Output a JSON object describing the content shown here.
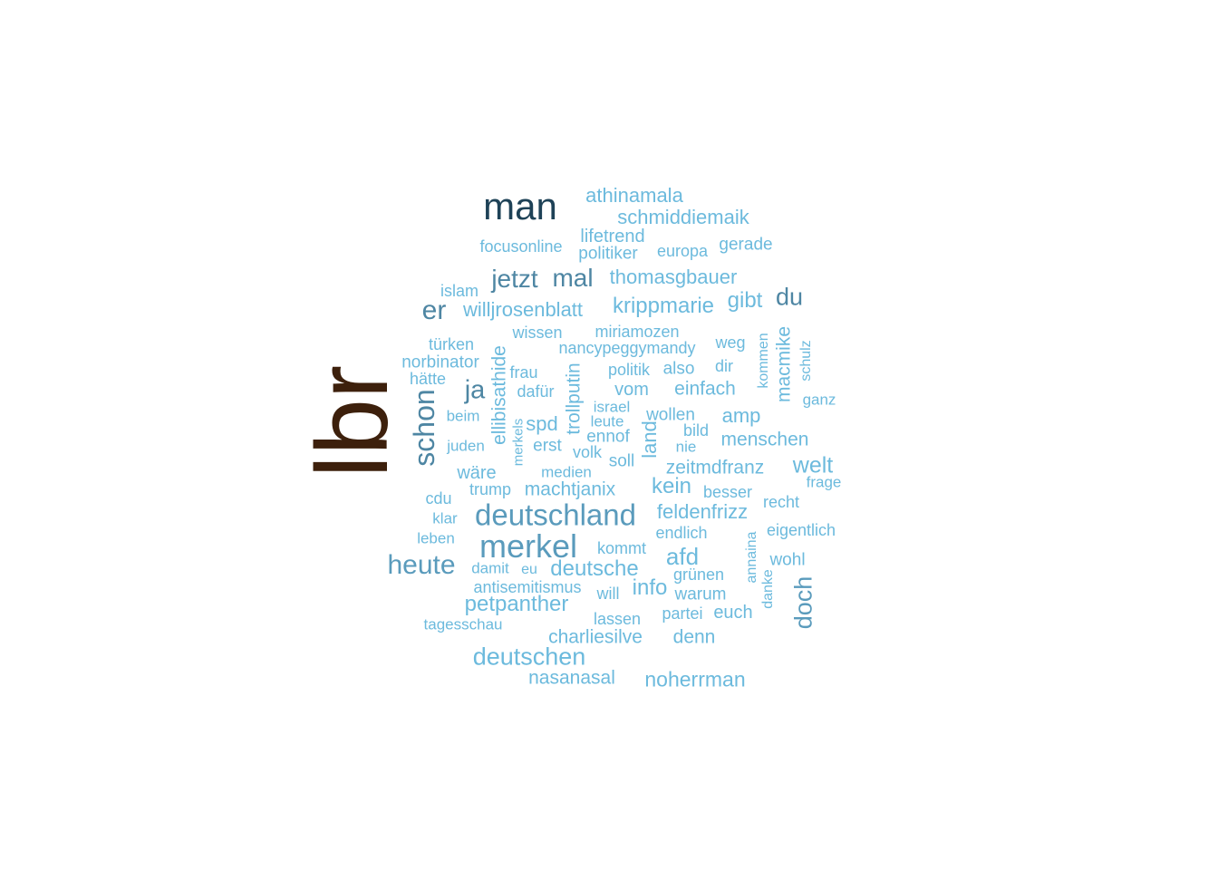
{
  "palette": {
    "top": "#3d200c",
    "second": "#1e4257",
    "tier3": "#4e86a3",
    "tier4": "#5a9bbc",
    "light": "#6cbadd"
  },
  "words": [
    {
      "text": "lbr",
      "color": "top",
      "rot": true
    },
    {
      "text": "man",
      "color": "second"
    },
    {
      "text": "athinamala",
      "color": "light"
    },
    {
      "text": "schmiddiemaik",
      "color": "light"
    },
    {
      "text": "lifetrend",
      "color": "light"
    },
    {
      "text": "focusonline",
      "color": "light"
    },
    {
      "text": "politiker",
      "color": "light"
    },
    {
      "text": "europa",
      "color": "light"
    },
    {
      "text": "gerade",
      "color": "light"
    },
    {
      "text": "jetzt",
      "color": "tier3"
    },
    {
      "text": "mal",
      "color": "tier3"
    },
    {
      "text": "thomasgbauer",
      "color": "light"
    },
    {
      "text": "islam",
      "color": "light"
    },
    {
      "text": "er",
      "color": "tier3"
    },
    {
      "text": "willjrosenblatt",
      "color": "light"
    },
    {
      "text": "krippmarie",
      "color": "light"
    },
    {
      "text": "gibt",
      "color": "light"
    },
    {
      "text": "du",
      "color": "tier3"
    },
    {
      "text": "wissen",
      "color": "light"
    },
    {
      "text": "miriamozen",
      "color": "light"
    },
    {
      "text": "türken",
      "color": "light"
    },
    {
      "text": "nancypeggymandy",
      "color": "light"
    },
    {
      "text": "weg",
      "color": "light"
    },
    {
      "text": "norbinator",
      "color": "light"
    },
    {
      "text": "hätte",
      "color": "light"
    },
    {
      "text": "frau",
      "color": "light"
    },
    {
      "text": "politik",
      "color": "light"
    },
    {
      "text": "also",
      "color": "light"
    },
    {
      "text": "dir",
      "color": "light"
    },
    {
      "text": "ja",
      "color": "tier3"
    },
    {
      "text": "dafür",
      "color": "light"
    },
    {
      "text": "vom",
      "color": "light"
    },
    {
      "text": "einfach",
      "color": "light"
    },
    {
      "text": "ganz",
      "color": "light"
    },
    {
      "text": "schon",
      "color": "tier3",
      "rot": true
    },
    {
      "text": "ellibisathide",
      "color": "light",
      "rot": true
    },
    {
      "text": "trollputin",
      "color": "light",
      "rot": true
    },
    {
      "text": "macmike",
      "color": "light",
      "rot": true
    },
    {
      "text": "kommen",
      "color": "light",
      "rot": true
    },
    {
      "text": "schulz",
      "color": "light",
      "rot": true
    },
    {
      "text": "merkels",
      "color": "light",
      "rot": true
    },
    {
      "text": "land",
      "color": "light",
      "rot": true
    },
    {
      "text": "beim",
      "color": "light"
    },
    {
      "text": "israel",
      "color": "light"
    },
    {
      "text": "leute",
      "color": "light"
    },
    {
      "text": "wollen",
      "color": "light"
    },
    {
      "text": "amp",
      "color": "light"
    },
    {
      "text": "spd",
      "color": "light"
    },
    {
      "text": "bild",
      "color": "light"
    },
    {
      "text": "juden",
      "color": "light"
    },
    {
      "text": "erst",
      "color": "light"
    },
    {
      "text": "ennof",
      "color": "light"
    },
    {
      "text": "nie",
      "color": "light"
    },
    {
      "text": "menschen",
      "color": "light"
    },
    {
      "text": "volk",
      "color": "light"
    },
    {
      "text": "soll",
      "color": "light"
    },
    {
      "text": "zeitmdfranz",
      "color": "light"
    },
    {
      "text": "welt",
      "color": "light"
    },
    {
      "text": "wäre",
      "color": "light"
    },
    {
      "text": "medien",
      "color": "light"
    },
    {
      "text": "frage",
      "color": "light"
    },
    {
      "text": "trump",
      "color": "light"
    },
    {
      "text": "machtjanix",
      "color": "light"
    },
    {
      "text": "kein",
      "color": "light"
    },
    {
      "text": "besser",
      "color": "light"
    },
    {
      "text": "cdu",
      "color": "light"
    },
    {
      "text": "recht",
      "color": "light"
    },
    {
      "text": "deutschland",
      "color": "tier4"
    },
    {
      "text": "feldenfrizz",
      "color": "light"
    },
    {
      "text": "klar",
      "color": "light"
    },
    {
      "text": "endlich",
      "color": "light"
    },
    {
      "text": "eigentlich",
      "color": "light"
    },
    {
      "text": "leben",
      "color": "light"
    },
    {
      "text": "merkel",
      "color": "tier4"
    },
    {
      "text": "kommt",
      "color": "light"
    },
    {
      "text": "afd",
      "color": "light"
    },
    {
      "text": "annaina",
      "color": "light",
      "rot": true
    },
    {
      "text": "wohl",
      "color": "light"
    },
    {
      "text": "heute",
      "color": "tier4"
    },
    {
      "text": "damit",
      "color": "light"
    },
    {
      "text": "eu",
      "color": "light"
    },
    {
      "text": "deutsche",
      "color": "light"
    },
    {
      "text": "grünen",
      "color": "light"
    },
    {
      "text": "danke",
      "color": "light",
      "rot": true
    },
    {
      "text": "doch",
      "color": "tier4",
      "rot": true
    },
    {
      "text": "antisemitismus",
      "color": "light"
    },
    {
      "text": "will",
      "color": "light"
    },
    {
      "text": "info",
      "color": "light"
    },
    {
      "text": "warum",
      "color": "light"
    },
    {
      "text": "petpanther",
      "color": "light"
    },
    {
      "text": "tagesschau",
      "color": "light"
    },
    {
      "text": "lassen",
      "color": "light"
    },
    {
      "text": "partei",
      "color": "light"
    },
    {
      "text": "euch",
      "color": "light"
    },
    {
      "text": "charliesilve",
      "color": "light"
    },
    {
      "text": "denn",
      "color": "light"
    },
    {
      "text": "deutschen",
      "color": "light"
    },
    {
      "text": "nasanasal",
      "color": "light"
    },
    {
      "text": "noherrman",
      "color": "light"
    }
  ]
}
